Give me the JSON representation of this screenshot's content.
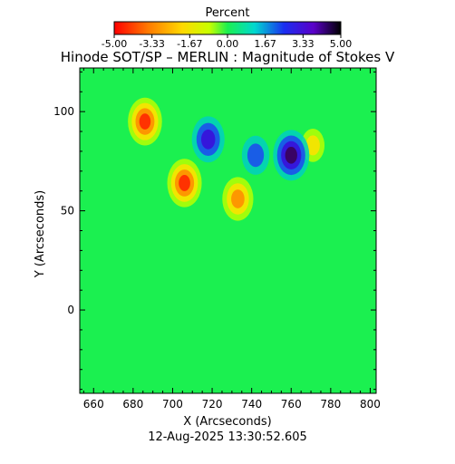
{
  "chart_data": {
    "type": "heatmap",
    "title": "Hinode SOT/SP – MERLIN : Magnitude of Stokes V",
    "xlabel": "X (Arcseconds)",
    "ylabel": "Y (Arcseconds)",
    "timestamp": "12-Aug-2025 13:30:52.605",
    "colorbar": {
      "label": "Percent",
      "range": [
        -5.0,
        5.0
      ],
      "ticks": [
        "-5.00",
        "-3.33",
        "-1.67",
        "0.00",
        "1.67",
        "3.33",
        "5.00"
      ]
    },
    "xlim": [
      653,
      803
    ],
    "ylim": [
      -42,
      122
    ],
    "xticks": [
      660,
      680,
      700,
      720,
      740,
      760,
      780,
      800
    ],
    "yticks": [
      0,
      50,
      100
    ],
    "grid": false,
    "features": [
      {
        "sign": "negative",
        "x": 686,
        "y": 95,
        "peak_percent": -4.5
      },
      {
        "sign": "negative",
        "x": 706,
        "y": 64,
        "peak_percent": -4.6
      },
      {
        "sign": "negative",
        "x": 733,
        "y": 56,
        "peak_percent": -3.8
      },
      {
        "sign": "negative",
        "x": 771,
        "y": 83,
        "peak_percent": -2.0
      },
      {
        "sign": "positive",
        "x": 718,
        "y": 86,
        "peak_percent": 4.2
      },
      {
        "sign": "positive",
        "x": 760,
        "y": 78,
        "peak_percent": 5.0
      },
      {
        "sign": "positive",
        "x": 742,
        "y": 78,
        "peak_percent": 3.0
      }
    ]
  }
}
